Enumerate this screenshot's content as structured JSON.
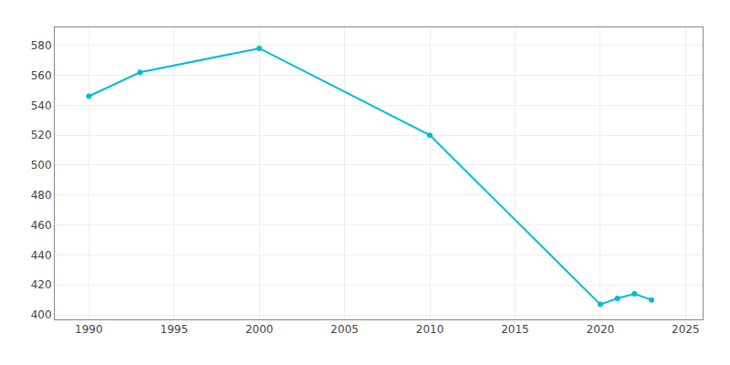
{
  "chart_data": {
    "type": "line",
    "x": [
      1990,
      1993,
      2000,
      2010,
      2020,
      2021,
      2022,
      2023
    ],
    "values": [
      546,
      562,
      578,
      520,
      407,
      411,
      414,
      410
    ],
    "color": "#00BCD4",
    "marker": "circle",
    "xlim": [
      1988,
      2026
    ],
    "ylim": [
      397,
      592
    ],
    "xticks": [
      1990,
      1995,
      2000,
      2005,
      2010,
      2015,
      2020,
      2025
    ],
    "yticks": [
      400,
      420,
      440,
      460,
      480,
      500,
      520,
      540,
      560,
      580
    ],
    "grid": true
  }
}
